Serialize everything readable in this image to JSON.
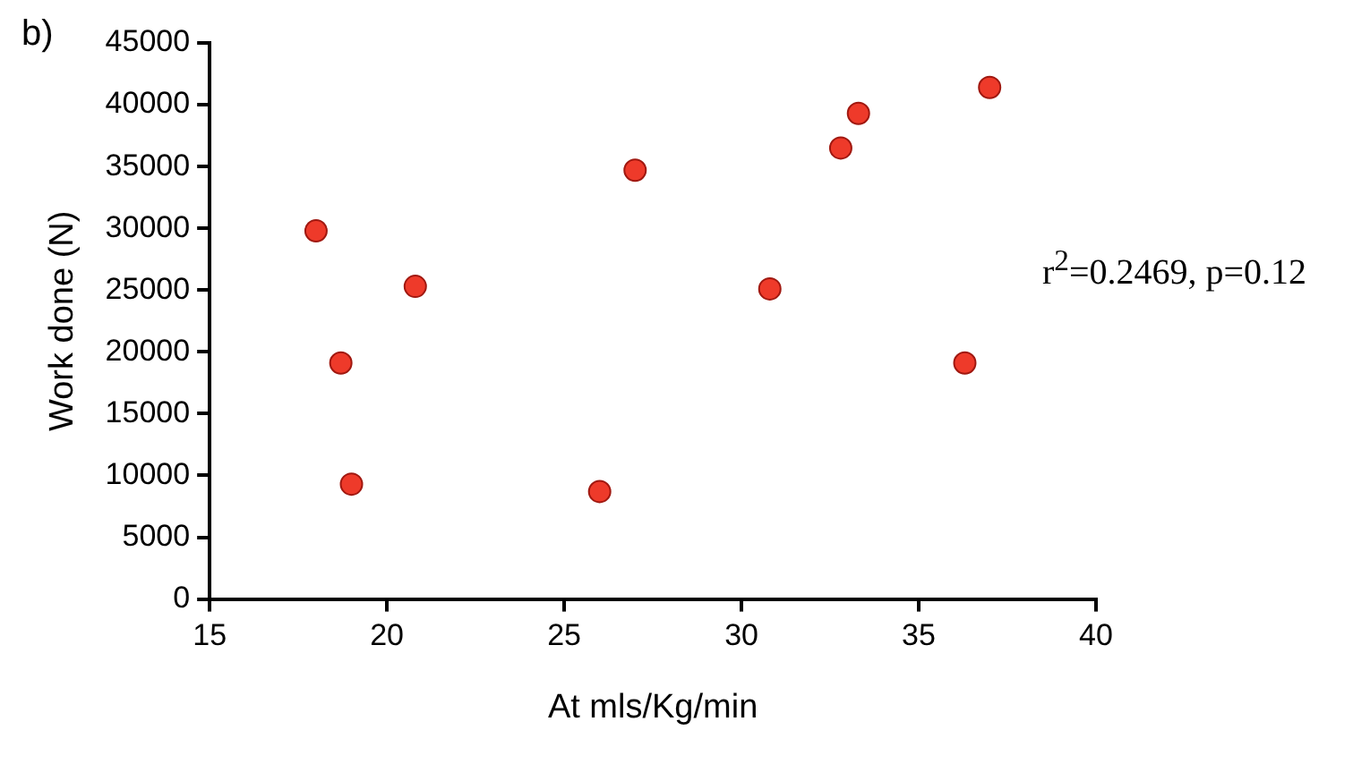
{
  "chart_data": {
    "type": "scatter",
    "xlabel": "At mls/Kg/min",
    "ylabel": "Work done (N)",
    "annotations": [
      "b)",
      "r$^{2}$=0.2469, p=0.12"
    ],
    "x": [
      18.0,
      18.7,
      19.0,
      20.8,
      26.0,
      27.0,
      30.8,
      32.8,
      33.3,
      36.3,
      37.0
    ],
    "values": [
      29800,
      19100,
      9300,
      25300,
      8700,
      34700,
      25100,
      36500,
      39300,
      19100,
      41400
    ],
    "color": "#ee3a2a",
    "marker": "circle",
    "grid": false,
    "legend": false,
    "xlim": [
      15,
      40
    ],
    "xticks": [
      15,
      20,
      25,
      30,
      35,
      40
    ],
    "ylim": [
      0,
      45000
    ],
    "yticks": [
      0,
      5000,
      10000,
      15000,
      20000,
      25000,
      30000,
      35000,
      40000,
      45000
    ]
  }
}
